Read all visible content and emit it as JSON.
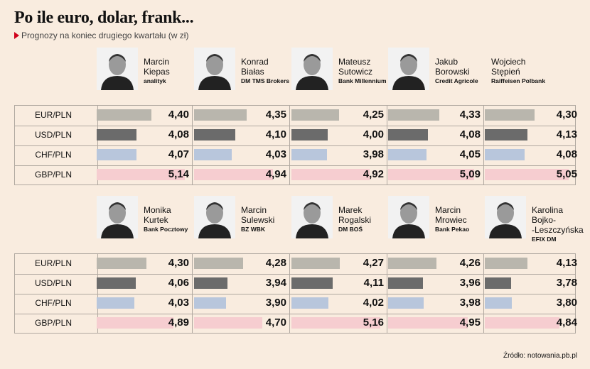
{
  "title": "Po ile euro, dolar, frank...",
  "subtitle": "Prognozy na koniec drugiego kwartału (w zł)",
  "source": "Źródło: notowania.pb.pl",
  "colors": {
    "EUR/PLN": "#b9b6ad",
    "USD/PLN": "#6b6b6b",
    "CHF/PLN": "#b8c6dc",
    "GBP/PLN": "#f6cdd0"
  },
  "chart_data": [
    {
      "type": "bar",
      "categories": [
        "EUR/PLN",
        "USD/PLN",
        "CHF/PLN",
        "GBP/PLN"
      ],
      "series": [
        {
          "name": "Marcin Kiepas",
          "first": "Marcin",
          "last": "Kiepas",
          "institution": "analityk",
          "values": [
            4.4,
            4.08,
            4.07,
            5.14
          ],
          "labels": [
            "4,40",
            "4,08",
            "4,07",
            "5,14"
          ]
        },
        {
          "name": "Konrad Białas",
          "first": "Konrad",
          "last": "Białas",
          "institution": "DM TMS Brokers",
          "values": [
            4.35,
            4.1,
            4.03,
            4.94
          ],
          "labels": [
            "4,35",
            "4,10",
            "4,03",
            "4,94"
          ]
        },
        {
          "name": "Mateusz Sutowicz",
          "first": "Mateusz",
          "last": "Sutowicz",
          "institution": "Bank Millennium",
          "values": [
            4.25,
            4.0,
            3.98,
            4.92
          ],
          "labels": [
            "4,25",
            "4,00",
            "3,98",
            "4,92"
          ]
        },
        {
          "name": "Jakub Borowski",
          "first": "Jakub",
          "last": "Borowski",
          "institution": "Credit Agricole",
          "values": [
            4.33,
            4.08,
            4.05,
            5.09
          ],
          "labels": [
            "4,33",
            "4,08",
            "4,05",
            "5,09"
          ]
        },
        {
          "name": "Wojciech Stępień",
          "first": "Wojciech",
          "last": "Stępień",
          "institution": "Raiffeisen Polbank",
          "values": [
            4.3,
            4.13,
            4.08,
            5.05
          ],
          "labels": [
            "4,30",
            "4,13",
            "4,08",
            "5,05"
          ]
        }
      ]
    },
    {
      "type": "bar",
      "categories": [
        "EUR/PLN",
        "USD/PLN",
        "CHF/PLN",
        "GBP/PLN"
      ],
      "series": [
        {
          "name": "Monika Kurtek",
          "first": "Monika",
          "last": "Kurtek",
          "institution": "Bank Pocztowy",
          "values": [
            4.3,
            4.06,
            4.03,
            4.89
          ],
          "labels": [
            "4,30",
            "4,06",
            "4,03",
            "4,89"
          ]
        },
        {
          "name": "Marcin Sulewski",
          "first": "Marcin",
          "last": "Sulewski",
          "institution": "BZ WBK",
          "values": [
            4.28,
            3.94,
            3.9,
            4.7
          ],
          "labels": [
            "4,28",
            "3,94",
            "3,90",
            "4,70"
          ]
        },
        {
          "name": "Marek Rogalski",
          "first": "Marek",
          "last": "Rogalski",
          "institution": "DM BOŚ",
          "values": [
            4.27,
            4.11,
            4.02,
            5.16
          ],
          "labels": [
            "4,27",
            "4,11",
            "4,02",
            "5,16"
          ]
        },
        {
          "name": "Marcin Mrowiec",
          "first": "Marcin",
          "last": "Mrowiec",
          "institution": "Bank Pekao",
          "values": [
            4.26,
            3.96,
            3.98,
            4.95
          ],
          "labels": [
            "4,26",
            "3,96",
            "3,98",
            "4,95"
          ]
        },
        {
          "name": "Karolina Bojko--Leszczyńska",
          "first": "Karolina",
          "last": "Bojko-\n-Leszczyńska",
          "institution": "EFIX DM",
          "values": [
            4.13,
            3.78,
            3.8,
            4.84
          ],
          "labels": [
            "4,13",
            "3,78",
            "3,80",
            "4,84"
          ]
        }
      ]
    }
  ]
}
